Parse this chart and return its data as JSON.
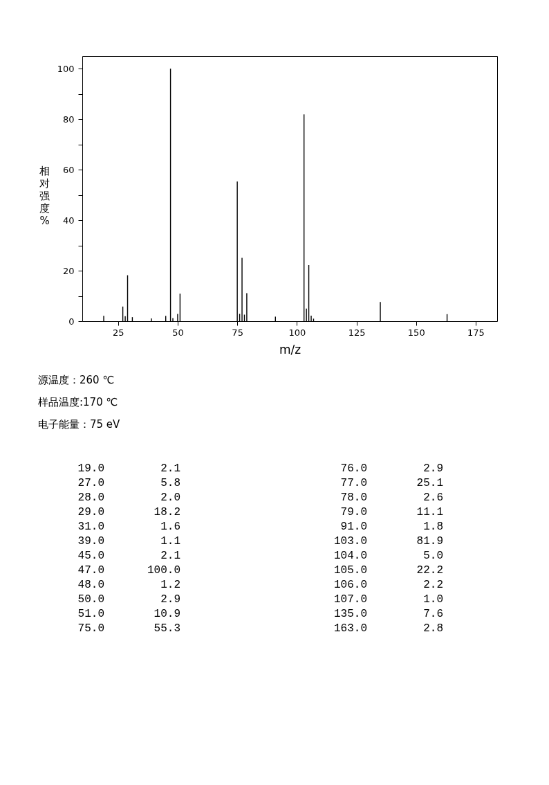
{
  "chart_data": {
    "type": "bar",
    "xlabel": "m/z",
    "ylabel": "相对强度%",
    "x": [
      19,
      27,
      28,
      29,
      31,
      39,
      45,
      47,
      48,
      50,
      51,
      75,
      76,
      77,
      78,
      79,
      91,
      103,
      104,
      105,
      106,
      107,
      135,
      163
    ],
    "values": [
      2.1,
      5.8,
      2.0,
      18.2,
      1.6,
      1.1,
      2.1,
      100.0,
      1.2,
      2.9,
      10.9,
      55.3,
      2.9,
      25.1,
      2.6,
      11.1,
      1.8,
      81.9,
      5.0,
      22.2,
      2.2,
      1.0,
      7.6,
      2.8
    ],
    "color": "#000000",
    "xlim": [
      10,
      184
    ],
    "xticks": [
      25,
      50,
      75,
      100,
      125,
      150,
      175
    ],
    "ylim": [
      0,
      105
    ],
    "yticks": [
      0,
      {
        "value": 10,
        "label": null
      },
      20,
      {
        "value": 30,
        "label": null
      },
      40,
      {
        "value": 50,
        "label": null
      },
      60,
      {
        "value": 70,
        "label": null
      },
      80,
      {
        "value": 90,
        "label": null
      },
      100
    ],
    "grid": false,
    "annotations": [
      "源温度：260 ℃",
      "样品温度:170 ℃",
      "电子能量：75 eV",
      "19.0",
      "2.1",
      "27.0",
      "5.8",
      "28.0",
      "2.0",
      "29.0",
      "18.2",
      "31.0",
      "1.6",
      "39.0",
      "1.1",
      "45.0",
      "2.1",
      "47.0",
      "100.0",
      "48.0",
      "1.2",
      "50.0",
      "2.9",
      "51.0",
      "10.9",
      "75.0",
      "55.3",
      "76.0",
      "2.9",
      "77.0",
      "25.1",
      "78.0",
      "2.6",
      "79.0",
      "11.1",
      "91.0",
      "1.8",
      "103.0",
      "81.9",
      "104.0",
      "5.0",
      "105.0",
      "22.2",
      "106.0",
      "2.2",
      "107.0",
      "1.0",
      "135.0",
      "7.6",
      "163.0",
      "2.8"
    ]
  }
}
